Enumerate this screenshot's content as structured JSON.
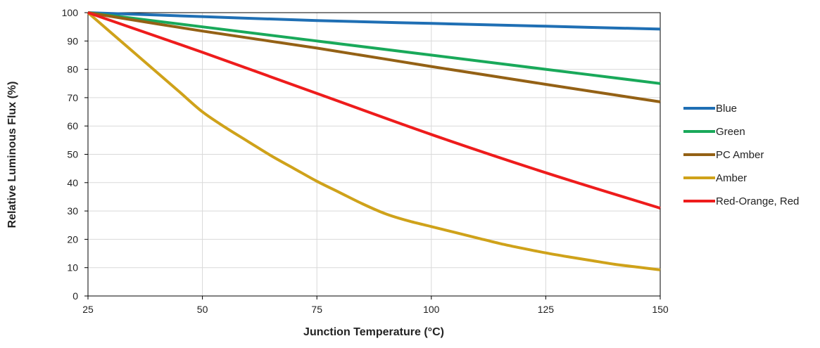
{
  "chart_data": {
    "type": "line",
    "xlabel": "Junction Temperature (°C)",
    "ylabel": "Relative Luminous Flux (%)",
    "xlim": [
      25,
      150
    ],
    "ylim": [
      0,
      100
    ],
    "x_ticks": [
      25,
      50,
      75,
      100,
      125,
      150
    ],
    "y_ticks": [
      0,
      10,
      20,
      30,
      40,
      50,
      60,
      70,
      80,
      90,
      100
    ],
    "grid": true,
    "legend_position": "right",
    "series": [
      {
        "name": "Blue",
        "color": "#1f6fb4",
        "x": [
          25,
          50,
          75,
          100,
          125,
          150
        ],
        "y": [
          100,
          98.6,
          97.2,
          96.2,
          95.2,
          94.2
        ]
      },
      {
        "name": "Green",
        "color": "#19a95a",
        "x": [
          25,
          50,
          75,
          100,
          125,
          150
        ],
        "y": [
          100,
          95,
          90,
          85,
          80,
          75
        ]
      },
      {
        "name": "PC Amber",
        "color": "#946115",
        "x": [
          25,
          50,
          75,
          100,
          125,
          150
        ],
        "y": [
          100,
          93.5,
          87.5,
          81,
          74.7,
          68.5
        ]
      },
      {
        "name": "Amber",
        "color": "#cfa21a",
        "x": [
          25,
          30,
          35,
          40,
          45,
          50,
          55,
          60,
          65,
          70,
          75,
          80,
          85,
          90,
          95,
          100,
          105,
          110,
          115,
          120,
          125,
          130,
          135,
          140,
          145,
          150
        ],
        "y": [
          100,
          93,
          86,
          79,
          72,
          65,
          59.5,
          54.5,
          49.5,
          45,
          40.5,
          36.5,
          32.5,
          29,
          26.5,
          24.5,
          22.5,
          20.5,
          18.5,
          16.8,
          15.2,
          13.8,
          12.5,
          11.2,
          10.2,
          9.2
        ]
      },
      {
        "name": "Red-Orange, Red",
        "color": "#ee1c1c",
        "x": [
          25,
          50,
          75,
          100,
          125,
          150
        ],
        "y": [
          100,
          86,
          71.5,
          57,
          43.5,
          31
        ]
      }
    ]
  }
}
